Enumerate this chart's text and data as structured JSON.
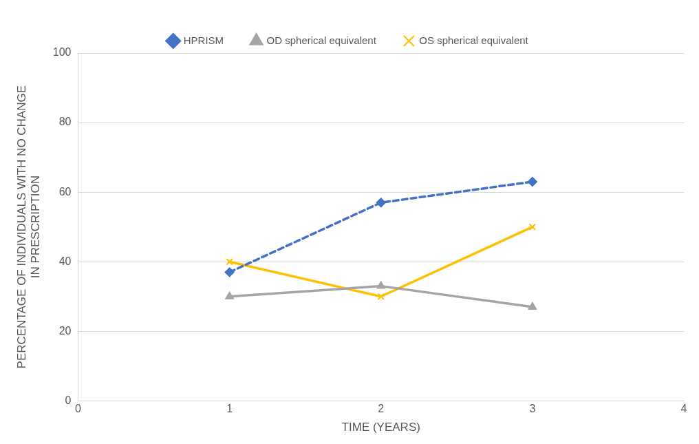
{
  "chart_data": {
    "type": "line",
    "xlabel": "TIME (YEARS)",
    "ylabel": "PERCENTAGE OF INDIVIDUALS WITH NO CHANGE IN PRESCRIPTION",
    "x": [
      1,
      2,
      3
    ],
    "xlim": [
      0,
      4
    ],
    "xticks": [
      0,
      1,
      2,
      3,
      4
    ],
    "ylim": [
      0,
      100
    ],
    "yticks": [
      0,
      20,
      40,
      60,
      80,
      100
    ],
    "grid": "y",
    "legend": "top",
    "series": [
      {
        "name": "HPRISM",
        "color": "#4472c4",
        "values": [
          37,
          57,
          63
        ],
        "marker": "diamond",
        "line_style": "dashed"
      },
      {
        "name": "OD spherical equivalent",
        "color": "#a5a5a5",
        "values": [
          30,
          33,
          27
        ],
        "marker": "triangle",
        "line_style": "solid"
      },
      {
        "name": "OS spherical equivalent",
        "color": "#ffc000",
        "values": [
          40,
          30,
          50
        ],
        "marker": "cross",
        "line_style": "solid"
      }
    ]
  }
}
